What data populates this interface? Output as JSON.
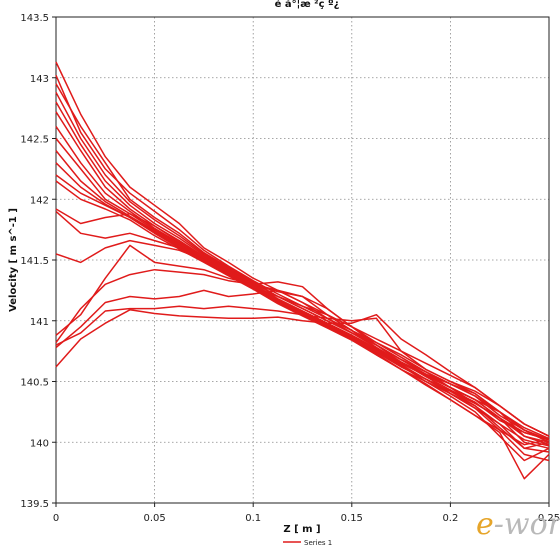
{
  "chart_data": {
    "type": "line",
    "title": "é å°¦æ ²ç º¿",
    "xlabel": "Z [ m ]",
    "ylabel": "Velocity [ m s^-1 ]",
    "xlim": [
      0,
      0.25
    ],
    "ylim": [
      139.5,
      143.5
    ],
    "xticks": [
      "0",
      "0.05",
      "0.1",
      "0.15",
      "0.2",
      "0.25"
    ],
    "yticks": [
      "139.5",
      "140",
      "140.5",
      "141",
      "141.5",
      "142",
      "142.5",
      "143",
      "143.5"
    ],
    "grid": true,
    "legend": {
      "position": "bottom-center",
      "entries": [
        "Series 1"
      ]
    },
    "color": "#e01b1b",
    "x": [
      0,
      0.0125,
      0.025,
      0.0375,
      0.05,
      0.0625,
      0.075,
      0.0875,
      0.1,
      0.1125,
      0.125,
      0.1375,
      0.15,
      0.1625,
      0.175,
      0.1875,
      0.2,
      0.2125,
      0.225,
      0.2375,
      0.25
    ],
    "series": [
      {
        "values": [
          143.13,
          142.7,
          142.35,
          142.1,
          141.95,
          141.8,
          141.6,
          141.48,
          141.35,
          141.25,
          141.15,
          141.05,
          140.95,
          140.85,
          140.75,
          140.65,
          140.55,
          140.45,
          140.3,
          140.15,
          140.05
        ]
      },
      {
        "values": [
          143.02,
          142.55,
          142.25,
          142.05,
          141.9,
          141.75,
          141.58,
          141.45,
          141.33,
          141.22,
          141.12,
          141.02,
          140.92,
          140.82,
          140.72,
          140.6,
          140.5,
          140.4,
          140.25,
          140.1,
          140.0
        ]
      },
      {
        "values": [
          142.95,
          142.6,
          142.3,
          142.0,
          141.85,
          141.72,
          141.56,
          141.44,
          141.32,
          141.2,
          141.1,
          141.0,
          140.9,
          140.8,
          140.68,
          140.58,
          140.45,
          140.32,
          140.2,
          140.05,
          139.98
        ]
      },
      {
        "values": [
          142.88,
          142.5,
          142.2,
          141.98,
          141.83,
          141.7,
          141.55,
          141.43,
          141.31,
          141.2,
          141.1,
          141.0,
          140.9,
          140.78,
          140.66,
          140.55,
          140.45,
          140.35,
          140.2,
          140.0,
          139.95
        ]
      },
      {
        "values": [
          142.8,
          142.45,
          142.15,
          141.95,
          141.8,
          141.68,
          141.54,
          141.42,
          141.3,
          141.18,
          141.08,
          140.98,
          140.88,
          140.77,
          140.65,
          140.55,
          140.4,
          140.3,
          140.15,
          139.95,
          139.92
        ]
      },
      {
        "values": [
          142.72,
          142.4,
          142.1,
          141.92,
          141.78,
          141.66,
          141.53,
          141.41,
          141.3,
          141.18,
          141.08,
          140.98,
          140.88,
          140.77,
          140.66,
          140.56,
          140.45,
          140.35,
          140.25,
          140.05,
          139.98
        ]
      },
      {
        "values": [
          142.6,
          142.3,
          142.05,
          141.9,
          141.76,
          141.64,
          141.52,
          141.4,
          141.29,
          141.17,
          141.07,
          140.97,
          140.87,
          140.76,
          140.64,
          140.52,
          140.4,
          140.28,
          140.1,
          139.9,
          139.85
        ]
      },
      {
        "values": [
          142.5,
          142.25,
          142.0,
          141.88,
          141.75,
          141.63,
          141.51,
          141.4,
          141.28,
          141.16,
          141.06,
          140.96,
          140.86,
          140.75,
          140.63,
          140.5,
          140.38,
          140.25,
          140.05,
          139.85,
          139.95
        ]
      },
      {
        "values": [
          142.4,
          142.15,
          141.98,
          141.86,
          141.74,
          141.62,
          141.5,
          141.39,
          141.28,
          141.16,
          141.06,
          140.96,
          140.86,
          140.74,
          140.62,
          140.52,
          140.42,
          140.3,
          140.12,
          139.95,
          140.0
        ]
      },
      {
        "values": [
          142.3,
          142.1,
          141.96,
          141.85,
          141.73,
          141.61,
          141.5,
          141.38,
          141.27,
          141.15,
          141.05,
          140.95,
          140.85,
          140.73,
          140.6,
          140.5,
          140.4,
          140.28,
          140.15,
          140.02,
          139.97
        ]
      },
      {
        "values": [
          142.2,
          142.05,
          141.95,
          141.85,
          141.72,
          141.6,
          141.49,
          141.38,
          141.27,
          141.15,
          141.05,
          140.95,
          140.85,
          140.72,
          140.6,
          140.48,
          140.35,
          140.22,
          140.1,
          139.98,
          140.02
        ]
      },
      {
        "values": [
          142.15,
          142.0,
          141.92,
          141.83,
          141.7,
          141.59,
          141.48,
          141.37,
          141.26,
          141.14,
          141.04,
          140.94,
          140.84,
          140.72,
          140.6,
          140.47,
          140.35,
          140.22,
          140.08,
          139.7,
          139.9
        ]
      },
      {
        "values": [
          141.92,
          141.8,
          141.85,
          141.88,
          141.78,
          141.65,
          141.52,
          141.4,
          141.28,
          141.17,
          141.07,
          140.97,
          140.87,
          140.75,
          140.63,
          140.52,
          140.42,
          140.32,
          140.2,
          140.05,
          140.0
        ]
      },
      {
        "values": [
          141.9,
          141.72,
          141.68,
          141.72,
          141.66,
          141.6,
          141.5,
          141.39,
          141.28,
          141.2,
          141.12,
          141.05,
          140.92,
          140.78,
          140.65,
          140.55,
          140.45,
          140.35,
          140.2,
          140.08,
          140.02
        ]
      },
      {
        "values": [
          141.55,
          141.48,
          141.6,
          141.66,
          141.62,
          141.58,
          141.5,
          141.4,
          141.3,
          141.24,
          141.2,
          141.1,
          140.95,
          140.8,
          140.66,
          140.54,
          140.43,
          140.33,
          140.18,
          140.08,
          140.02
        ]
      },
      {
        "values": [
          140.88,
          141.05,
          141.35,
          141.62,
          141.48,
          141.45,
          141.42,
          141.35,
          141.3,
          141.25,
          141.2,
          141.05,
          140.92,
          140.8,
          140.68,
          140.56,
          140.48,
          140.38,
          140.22,
          140.1,
          140.02
        ]
      },
      {
        "values": [
          140.82,
          141.1,
          141.3,
          141.38,
          141.42,
          141.4,
          141.38,
          141.33,
          141.3,
          141.32,
          141.28,
          141.1,
          140.95,
          140.82,
          140.7,
          140.58,
          140.48,
          140.4,
          140.25,
          140.12,
          140.03
        ]
      },
      {
        "values": [
          140.78,
          140.95,
          141.15,
          141.2,
          141.18,
          141.2,
          141.25,
          141.2,
          141.22,
          141.25,
          141.15,
          141.02,
          140.9,
          140.8,
          140.68,
          140.58,
          140.48,
          140.38,
          140.25,
          140.1,
          140.02
        ]
      },
      {
        "values": [
          140.8,
          140.9,
          141.08,
          141.1,
          141.1,
          141.12,
          141.1,
          141.12,
          141.1,
          141.08,
          141.05,
          141.02,
          141.0,
          141.02,
          140.75,
          140.6,
          140.5,
          140.42,
          140.3,
          140.15,
          140.05
        ]
      },
      {
        "values": [
          140.62,
          140.85,
          140.98,
          141.09,
          141.06,
          141.04,
          141.03,
          141.02,
          141.02,
          141.03,
          141.0,
          140.98,
          140.98,
          141.05,
          140.85,
          140.72,
          140.58,
          140.45,
          140.3,
          140.15,
          140.05
        ]
      }
    ]
  },
  "watermark": {
    "prefix": "e",
    "text": "-works"
  }
}
